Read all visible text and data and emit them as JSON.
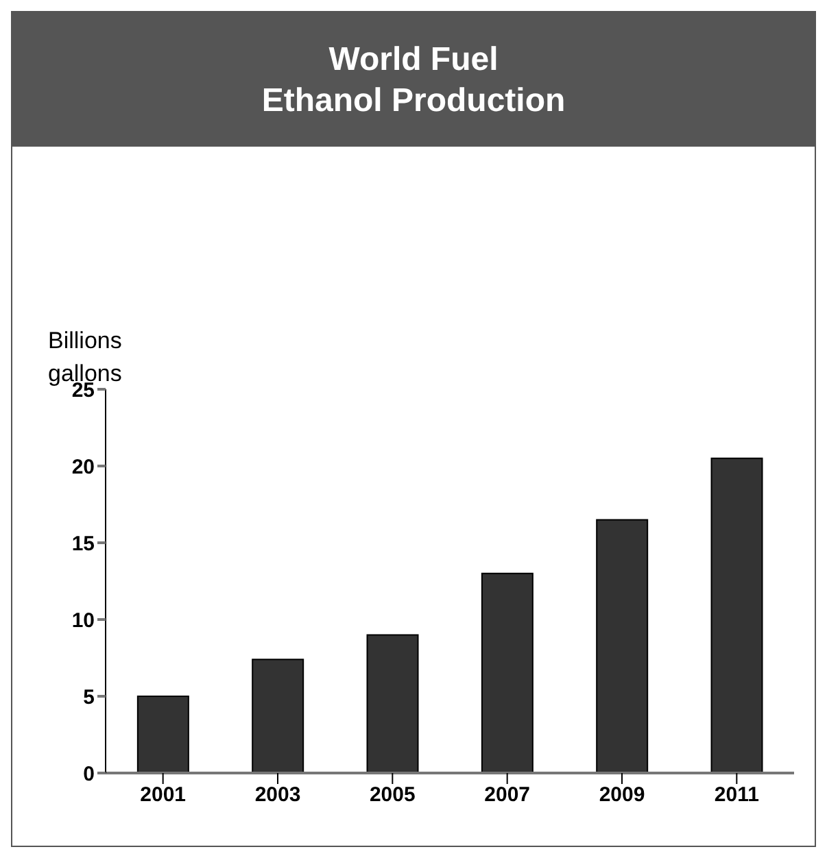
{
  "chart_data": {
    "type": "bar",
    "title": "World Fuel\nEthanol Production",
    "ylabel": "Billions\ngallons",
    "categories": [
      "2001",
      "2003",
      "2005",
      "2007",
      "2009",
      "2011"
    ],
    "values": [
      5,
      7.4,
      9,
      13,
      16.5,
      20.5
    ],
    "color": "#333333",
    "ylim": [
      0,
      25
    ],
    "yticks": [
      0,
      5,
      10,
      15,
      20,
      25
    ],
    "grid": false,
    "legend": false
  }
}
